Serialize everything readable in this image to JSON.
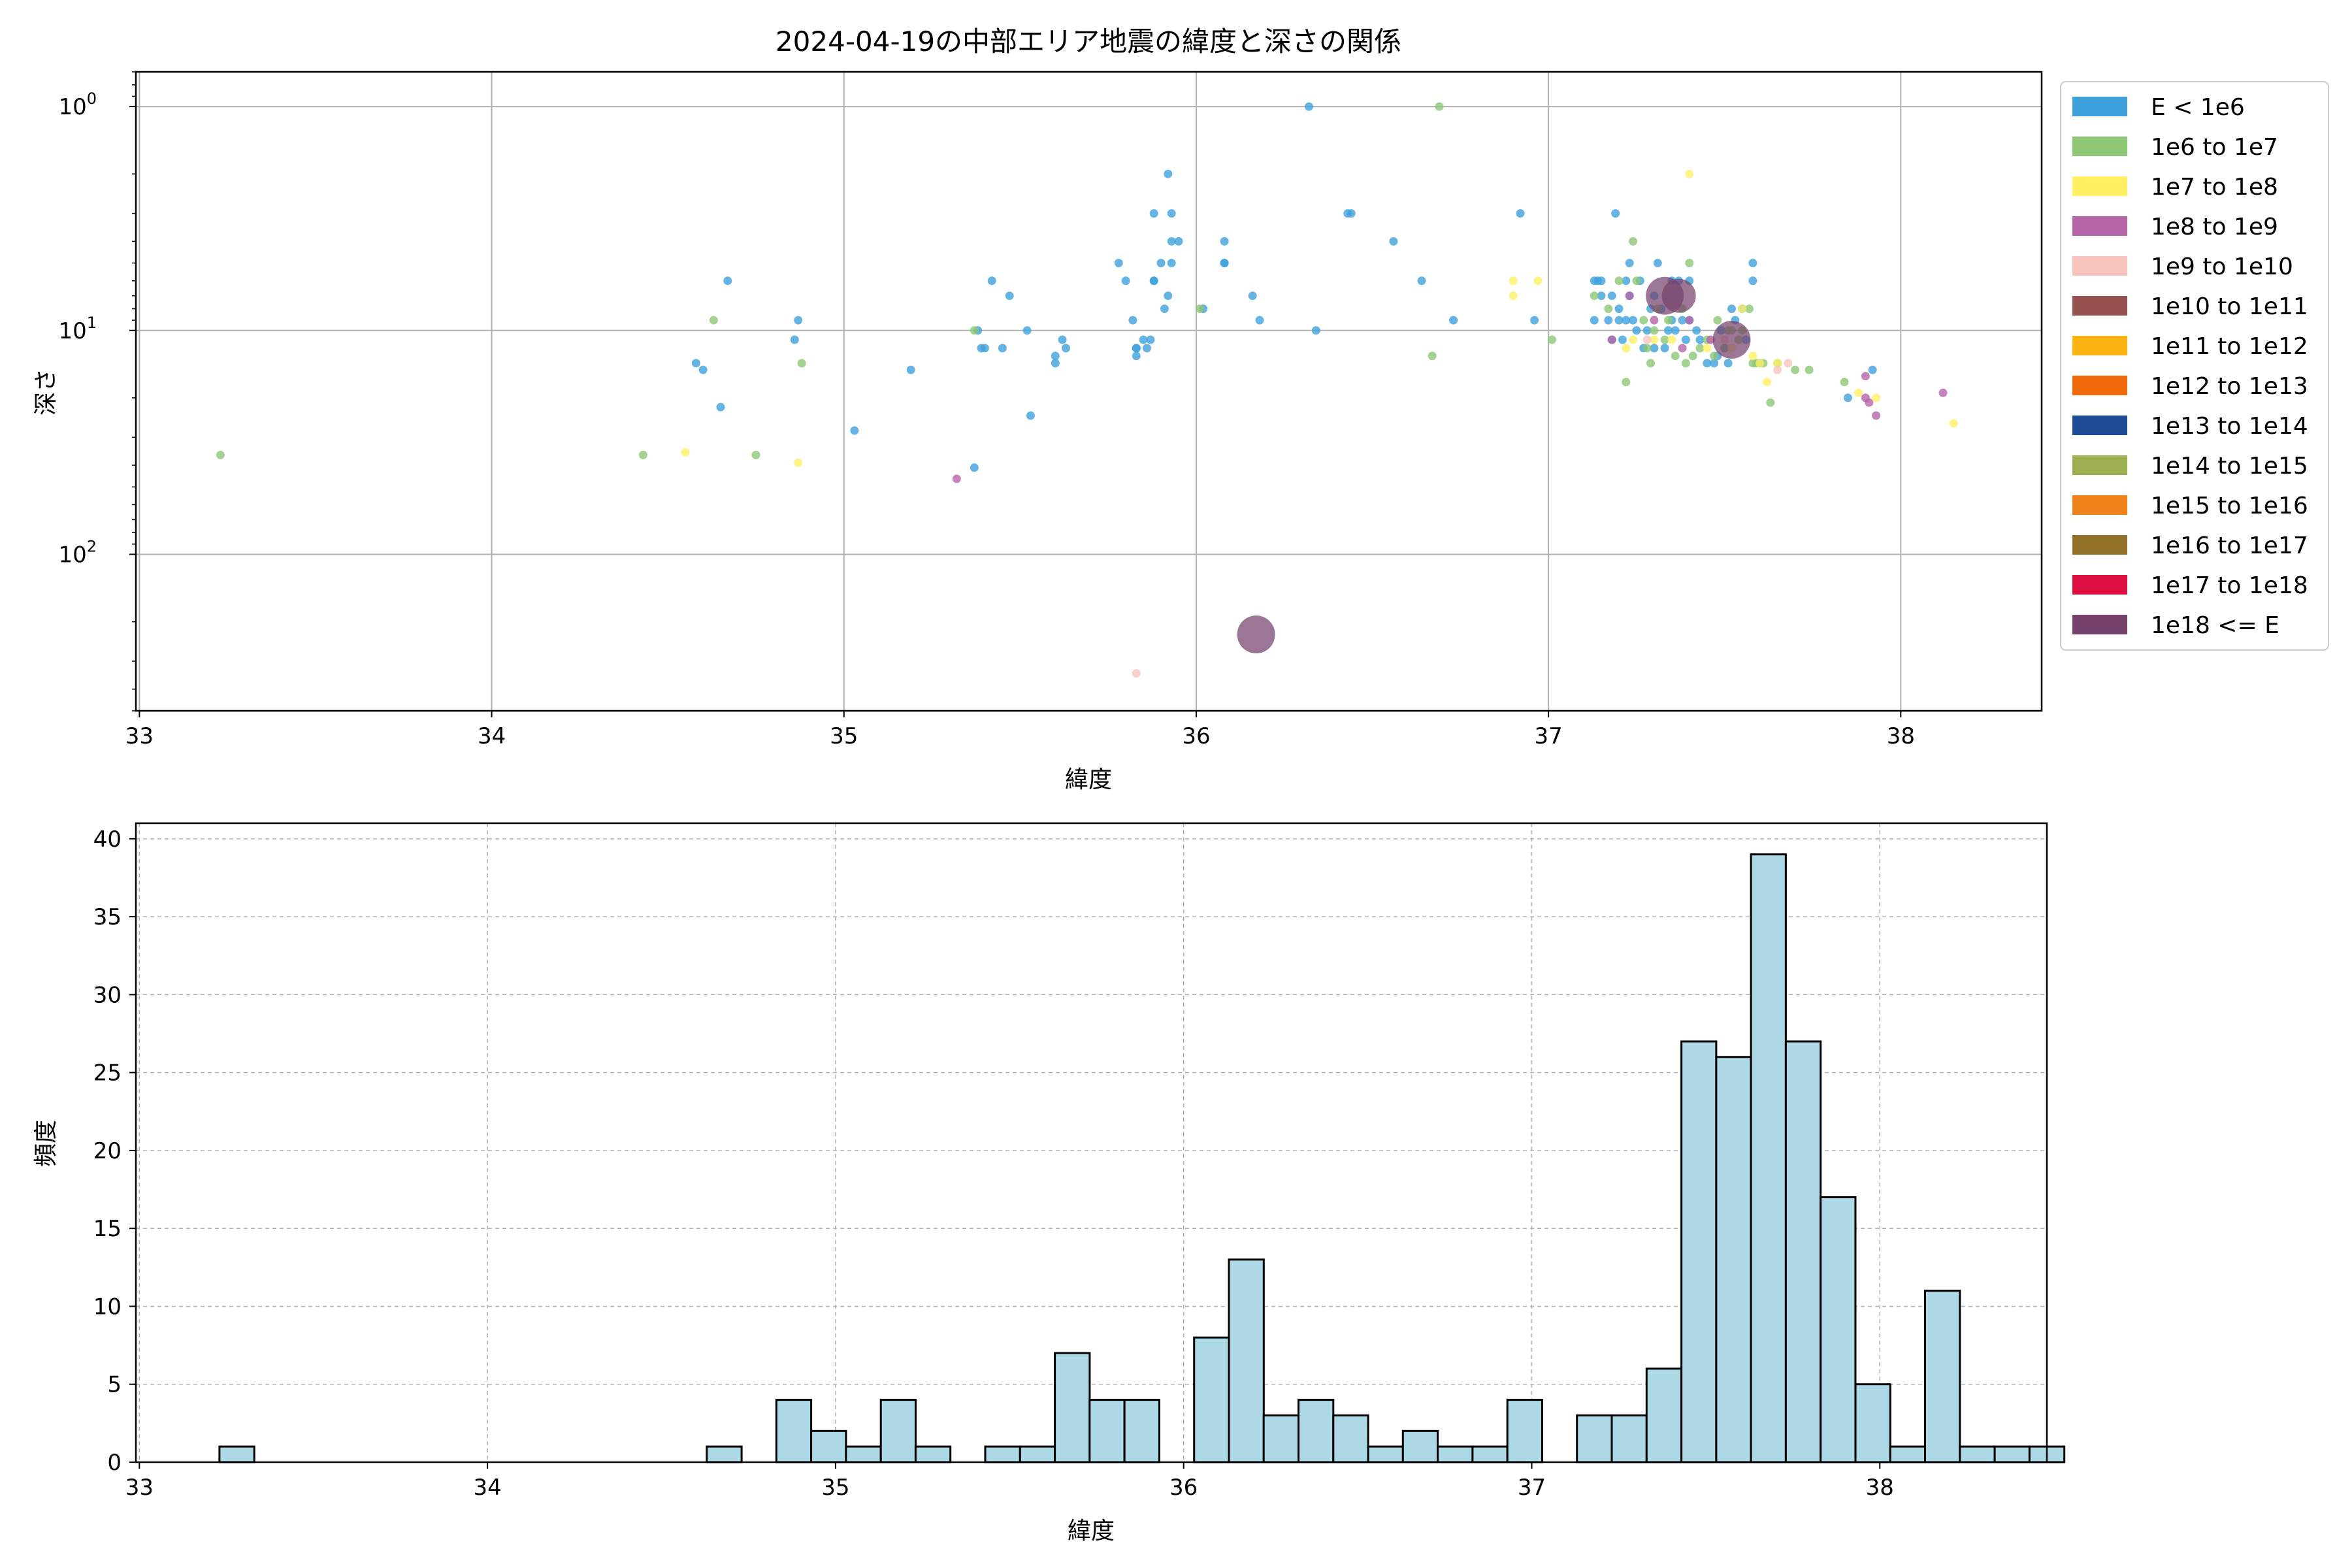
{
  "chart_data": [
    {
      "type": "scatter",
      "title": "2024-04-19の中部エリア地震の緯度と深さの関係",
      "xlabel": "緯度",
      "ylabel": "深さ",
      "xlim": [
        32.99,
        38.4
      ],
      "ylim": [
        500,
        0.7
      ],
      "yscale": "log",
      "y_inverted": true,
      "grid": true,
      "legend_placement": "outside-right-top",
      "x_ticks": [
        "33",
        "34",
        "35",
        "36",
        "37",
        "38"
      ],
      "x_tick_values": [
        33,
        34,
        35,
        36,
        37,
        38
      ],
      "y_ticks": [
        {
          "base": "10",
          "exp": "0",
          "value": 1
        },
        {
          "base": "10",
          "exp": "1",
          "value": 10
        },
        {
          "base": "10",
          "exp": "2",
          "value": 100
        }
      ],
      "legend": [
        {
          "label": "E < 1e6",
          "color": "#3ea1dc"
        },
        {
          "label": "1e6 to 1e7",
          "color": "#8dc774"
        },
        {
          "label": "1e7 to 1e8",
          "color": "#fff064"
        },
        {
          "label": "1e8 to 1e9",
          "color": "#b565a7"
        },
        {
          "label": "1e9 to 1e10",
          "color": "#f7c3bd"
        },
        {
          "label": "1e10 to 1e11",
          "color": "#955251"
        },
        {
          "label": "1e11 to 1e12",
          "color": "#fbb412"
        },
        {
          "label": "1e12 to 1e13",
          "color": "#f06a0c"
        },
        {
          "label": "1e13 to 1e14",
          "color": "#1c4b94"
        },
        {
          "label": "1e14 to 1e15",
          "color": "#9caf51"
        },
        {
          "label": "1e15 to 1e16",
          "color": "#ef8219"
        },
        {
          "label": "1e16 to 1e17",
          "color": "#937027"
        },
        {
          "label": "1e17 to 1e18",
          "color": "#dc0f3f"
        },
        {
          "label": "1e18 <= E",
          "color": "#75426c"
        }
      ],
      "series": [
        {
          "category": "E < 1e6",
          "color": "#3ea1dc",
          "points": [
            [
              34.58,
              14
            ],
            [
              34.6,
              15
            ],
            [
              34.65,
              22
            ],
            [
              34.67,
              6
            ],
            [
              34.86,
              11
            ],
            [
              34.87,
              9
            ],
            [
              35.03,
              28
            ],
            [
              35.19,
              15
            ],
            [
              35.37,
              41
            ],
            [
              35.38,
              10
            ],
            [
              35.39,
              12
            ],
            [
              35.4,
              12
            ],
            [
              35.42,
              6
            ],
            [
              35.45,
              12
            ],
            [
              35.47,
              7
            ],
            [
              35.52,
              10
            ],
            [
              35.53,
              24
            ],
            [
              35.6,
              13
            ],
            [
              35.6,
              14
            ],
            [
              35.62,
              11
            ],
            [
              35.63,
              12
            ],
            [
              35.78,
              5
            ],
            [
              35.8,
              6
            ],
            [
              35.82,
              9
            ],
            [
              35.83,
              12
            ],
            [
              35.83,
              12
            ],
            [
              35.83,
              13
            ],
            [
              35.85,
              11
            ],
            [
              35.86,
              12
            ],
            [
              35.87,
              11
            ],
            [
              35.88,
              3
            ],
            [
              35.88,
              6
            ],
            [
              35.88,
              6
            ],
            [
              35.9,
              5
            ],
            [
              35.91,
              8
            ],
            [
              35.92,
              2
            ],
            [
              35.92,
              7
            ],
            [
              35.93,
              3
            ],
            [
              35.93,
              4
            ],
            [
              35.93,
              5
            ],
            [
              35.95,
              4
            ],
            [
              36.02,
              8
            ],
            [
              36.08,
              4
            ],
            [
              36.08,
              5
            ],
            [
              36.08,
              5
            ],
            [
              36.16,
              7
            ],
            [
              36.18,
              9
            ],
            [
              36.32,
              1
            ],
            [
              36.34,
              10
            ],
            [
              36.43,
              3
            ],
            [
              36.44,
              3
            ],
            [
              36.56,
              4
            ],
            [
              36.64,
              6
            ],
            [
              36.73,
              9
            ],
            [
              36.92,
              3
            ],
            [
              36.96,
              9
            ],
            [
              37.13,
              6
            ],
            [
              37.13,
              9
            ],
            [
              37.14,
              6
            ],
            [
              37.15,
              6
            ],
            [
              37.15,
              7
            ],
            [
              37.17,
              9
            ],
            [
              37.18,
              11
            ],
            [
              37.18,
              7
            ],
            [
              37.19,
              3
            ],
            [
              37.2,
              8
            ],
            [
              37.2,
              9
            ],
            [
              37.21,
              11
            ],
            [
              37.22,
              6
            ],
            [
              37.22,
              9
            ],
            [
              37.23,
              5
            ],
            [
              37.23,
              7
            ],
            [
              37.24,
              9
            ],
            [
              37.25,
              10
            ],
            [
              37.26,
              6
            ],
            [
              37.27,
              12
            ],
            [
              37.28,
              10
            ],
            [
              37.29,
              8
            ],
            [
              37.3,
              7
            ],
            [
              37.3,
              12
            ],
            [
              37.31,
              5
            ],
            [
              37.32,
              8
            ],
            [
              37.33,
              12
            ],
            [
              37.34,
              10
            ],
            [
              37.35,
              9
            ],
            [
              37.35,
              6
            ],
            [
              37.36,
              10
            ],
            [
              37.37,
              6
            ],
            [
              37.38,
              9
            ],
            [
              37.39,
              11
            ],
            [
              37.4,
              6
            ],
            [
              37.4,
              9
            ],
            [
              37.42,
              10
            ],
            [
              37.43,
              11
            ],
            [
              37.45,
              14
            ],
            [
              37.47,
              14
            ],
            [
              37.48,
              13
            ],
            [
              37.49,
              10
            ],
            [
              37.5,
              12
            ],
            [
              37.51,
              14
            ],
            [
              37.52,
              8
            ],
            [
              37.53,
              9
            ],
            [
              37.55,
              8
            ],
            [
              37.56,
              11
            ],
            [
              37.58,
              5
            ],
            [
              37.58,
              6
            ],
            [
              37.6,
              14
            ],
            [
              37.85,
              20
            ],
            [
              37.92,
              15
            ]
          ]
        },
        {
          "category": "1e6 to 1e7",
          "color": "#8dc774",
          "points": [
            [
              33.23,
              36
            ],
            [
              34.43,
              36
            ],
            [
              34.63,
              9
            ],
            [
              34.75,
              36
            ],
            [
              34.88,
              14
            ],
            [
              35.37,
              10
            ],
            [
              36.01,
              8
            ],
            [
              36.67,
              13
            ],
            [
              36.69,
              1
            ],
            [
              37.01,
              11
            ],
            [
              37.13,
              7
            ],
            [
              37.17,
              8
            ],
            [
              37.2,
              6
            ],
            [
              37.22,
              17
            ],
            [
              37.24,
              4
            ],
            [
              37.25,
              6
            ],
            [
              37.27,
              9
            ],
            [
              37.28,
              12
            ],
            [
              37.29,
              14
            ],
            [
              37.3,
              10
            ],
            [
              37.31,
              8
            ],
            [
              37.33,
              11
            ],
            [
              37.34,
              9
            ],
            [
              37.36,
              13
            ],
            [
              37.38,
              8
            ],
            [
              37.39,
              14
            ],
            [
              37.4,
              5
            ],
            [
              37.41,
              13
            ],
            [
              37.43,
              12
            ],
            [
              37.45,
              11
            ],
            [
              37.47,
              13
            ],
            [
              37.48,
              9
            ],
            [
              37.5,
              12
            ],
            [
              37.51,
              10
            ],
            [
              37.52,
              10
            ],
            [
              37.54,
              11
            ],
            [
              37.55,
              10
            ],
            [
              37.57,
              8
            ],
            [
              37.58,
              14
            ],
            [
              37.59,
              14
            ],
            [
              37.61,
              14
            ],
            [
              37.63,
              21
            ],
            [
              37.65,
              14
            ],
            [
              37.7,
              15
            ],
            [
              37.74,
              15
            ],
            [
              37.84,
              17
            ]
          ]
        },
        {
          "category": "1e7 to 1e8",
          "color": "#fff064",
          "points": [
            [
              34.55,
              35
            ],
            [
              34.87,
              39
            ],
            [
              36.9,
              6
            ],
            [
              36.9,
              7
            ],
            [
              36.97,
              6
            ],
            [
              37.22,
              12
            ],
            [
              37.24,
              11
            ],
            [
              37.3,
              11
            ],
            [
              37.35,
              11
            ],
            [
              37.4,
              2
            ],
            [
              37.45,
              12
            ],
            [
              37.52,
              12
            ],
            [
              37.55,
              8
            ],
            [
              37.58,
              13
            ],
            [
              37.6,
              14
            ],
            [
              37.62,
              17
            ],
            [
              37.65,
              14
            ],
            [
              37.88,
              19
            ],
            [
              37.93,
              20
            ],
            [
              38.15,
              26
            ]
          ]
        },
        {
          "category": "1e8 to 1e9",
          "color": "#b565a7",
          "points": [
            [
              35.32,
              46
            ],
            [
              37.18,
              11
            ],
            [
              37.23,
              7
            ],
            [
              37.3,
              9
            ],
            [
              37.38,
              12
            ],
            [
              37.4,
              9
            ],
            [
              37.46,
              11
            ],
            [
              37.9,
              16
            ],
            [
              37.9,
              20
            ],
            [
              37.91,
              21
            ],
            [
              37.93,
              24
            ],
            [
              38.12,
              19
            ]
          ]
        },
        {
          "category": "1e9 to 1e10",
          "color": "#f7c3bd",
          "points": [
            [
              35.83,
              340
            ],
            [
              37.28,
              11
            ],
            [
              37.5,
              11
            ],
            [
              37.65,
              15
            ],
            [
              37.68,
              14
            ]
          ]
        },
        {
          "category": "1e18 <= E",
          "color": "#75426c",
          "points": [
            [
              36.17,
              228
            ],
            [
              37.33,
              7
            ],
            [
              37.37,
              7
            ],
            [
              37.52,
              11
            ]
          ],
          "point_sizes": [
            "large",
            "large",
            "medium",
            "large"
          ]
        }
      ]
    },
    {
      "type": "bar",
      "subtype": "histogram",
      "xlabel": "緯度",
      "ylabel": "頻度",
      "xlim": [
        32.99,
        38.48
      ],
      "ylim": [
        0,
        41
      ],
      "grid": "dashed",
      "x_ticks": [
        "33",
        "34",
        "35",
        "36",
        "37",
        "38"
      ],
      "x_tick_values": [
        33,
        34,
        35,
        36,
        37,
        38
      ],
      "y_ticks": [
        "0",
        "5",
        "10",
        "15",
        "20",
        "25",
        "30",
        "35",
        "40"
      ],
      "y_tick_values": [
        0,
        5,
        10,
        15,
        20,
        25,
        30,
        35,
        40
      ],
      "bar_color": "#add8e6",
      "bin_start": 33.23,
      "bin_width": 0.1,
      "values": [
        1,
        0,
        0,
        0,
        0,
        0,
        0,
        0,
        0,
        0,
        0,
        0,
        0,
        0,
        1,
        0,
        4,
        2,
        1,
        4,
        1,
        0,
        1,
        1,
        7,
        4,
        4,
        0,
        8,
        13,
        3,
        4,
        3,
        1,
        2,
        1,
        1,
        4,
        0,
        3,
        3,
        6,
        27,
        26,
        39,
        27,
        17,
        5,
        1,
        11,
        1,
        1,
        1
      ]
    }
  ]
}
